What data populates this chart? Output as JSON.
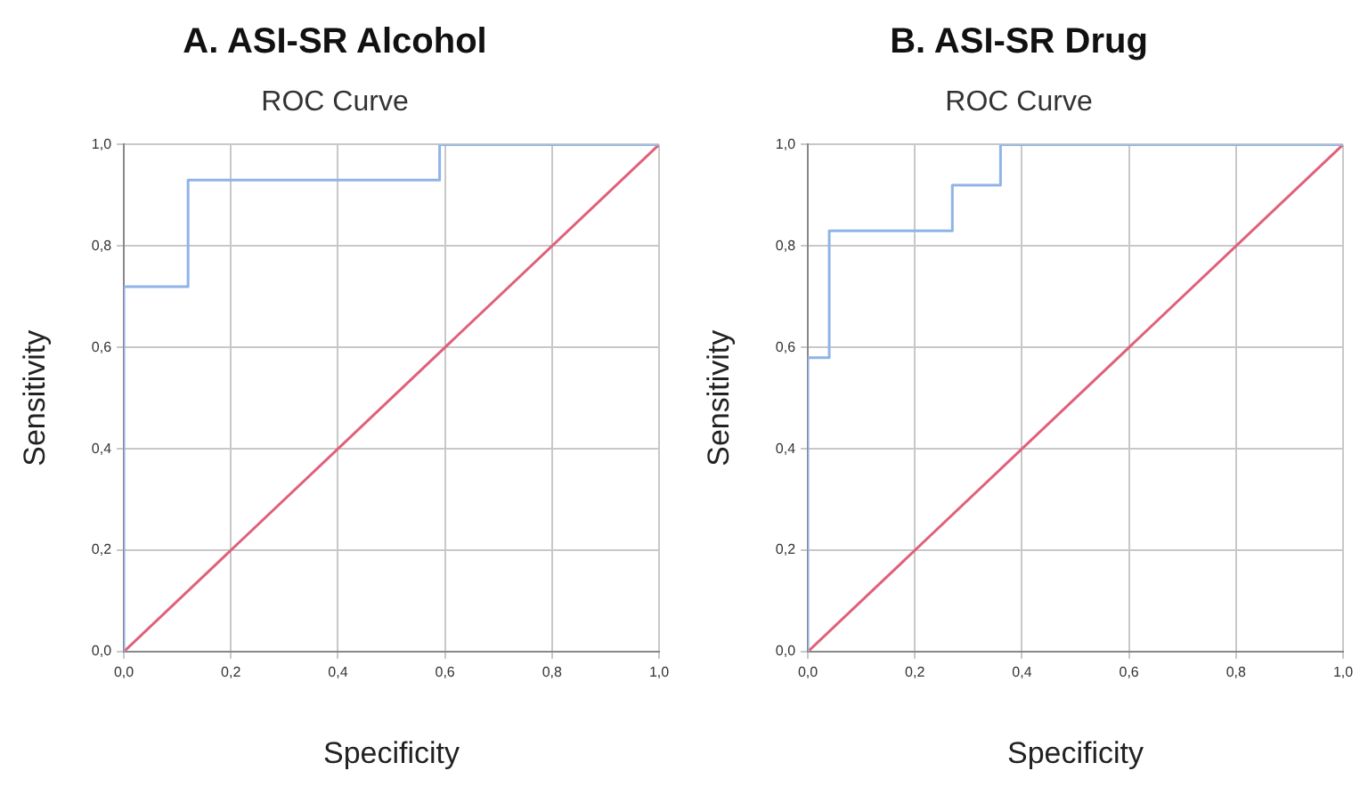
{
  "chart_data": [
    {
      "type": "line",
      "title": "A. ASI-SR Alcohol",
      "subtitle": "ROC Curve",
      "xlabel": "Specificity",
      "ylabel": "Sensitivity",
      "xlim": [
        0,
        1
      ],
      "ylim": [
        0,
        1
      ],
      "xticks": [
        {
          "value": 0,
          "label": "0,0"
        },
        {
          "value": 0.2,
          "label": "0,2"
        },
        {
          "value": 0.4,
          "label": "0,4"
        },
        {
          "value": 0.6,
          "label": "0,6"
        },
        {
          "value": 0.8,
          "label": "0,8"
        },
        {
          "value": 1,
          "label": "1,0"
        }
      ],
      "yticks": [
        {
          "value": 0,
          "label": "0,0"
        },
        {
          "value": 0.2,
          "label": "0,2"
        },
        {
          "value": 0.4,
          "label": "0,4"
        },
        {
          "value": 0.6,
          "label": "0,6"
        },
        {
          "value": 0.8,
          "label": "0,8"
        },
        {
          "value": 1,
          "label": "1,0"
        }
      ],
      "grid": true,
      "legend": false,
      "marker": "none",
      "line_style": "solid",
      "series": [
        {
          "color": "#8fb4e8",
          "x": [
            0,
            0,
            0.12,
            0.12,
            0.59,
            0.59,
            1
          ],
          "values": [
            0,
            0.72,
            0.72,
            0.93,
            0.93,
            1,
            1
          ]
        },
        {
          "color": "#e0607a",
          "x": [
            0,
            1
          ],
          "values": [
            0,
            1
          ]
        }
      ]
    },
    {
      "type": "line",
      "title": "B. ASI-SR Drug",
      "subtitle": "ROC Curve",
      "xlabel": "Specificity",
      "ylabel": "Sensitivity",
      "xlim": [
        0,
        1
      ],
      "ylim": [
        0,
        1
      ],
      "xticks": [
        {
          "value": 0,
          "label": "0,0"
        },
        {
          "value": 0.2,
          "label": "0,2"
        },
        {
          "value": 0.4,
          "label": "0,4"
        },
        {
          "value": 0.6,
          "label": "0,6"
        },
        {
          "value": 0.8,
          "label": "0,8"
        },
        {
          "value": 1,
          "label": "1,0"
        }
      ],
      "yticks": [
        {
          "value": 0,
          "label": "0,0"
        },
        {
          "value": 0.2,
          "label": "0,2"
        },
        {
          "value": 0.4,
          "label": "0,4"
        },
        {
          "value": 0.6,
          "label": "0,6"
        },
        {
          "value": 0.8,
          "label": "0,8"
        },
        {
          "value": 1,
          "label": "1,0"
        }
      ],
      "grid": true,
      "legend": false,
      "marker": "none",
      "line_style": "solid",
      "series": [
        {
          "color": "#8fb4e8",
          "x": [
            0,
            0,
            0.04,
            0.04,
            0.27,
            0.27,
            0.36,
            0.36,
            1
          ],
          "values": [
            0,
            0.58,
            0.58,
            0.83,
            0.83,
            0.92,
            0.92,
            1,
            1
          ]
        },
        {
          "color": "#e0607a",
          "x": [
            0,
            1
          ],
          "values": [
            0,
            1
          ]
        }
      ]
    }
  ]
}
